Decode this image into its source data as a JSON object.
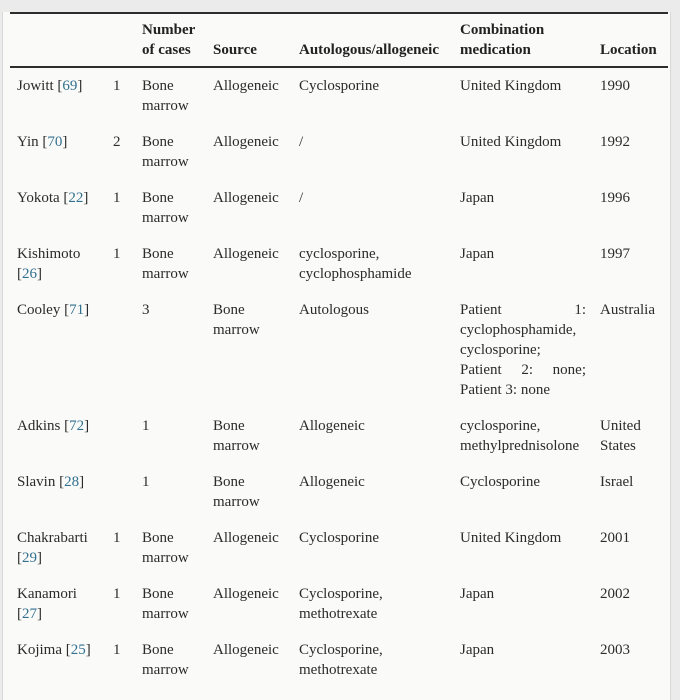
{
  "colors": {
    "page_background": "#ebebeb",
    "panel_background": "#fafaf9",
    "rule": "#2d2d2d",
    "text": "#2b2b2b",
    "citation_link": "#31708f"
  },
  "table": {
    "columns": [
      {
        "key": "author",
        "label": ""
      },
      {
        "key": "cases-left",
        "label": ""
      },
      {
        "key": "number-of-cases",
        "label": "Number of cases"
      },
      {
        "key": "source",
        "label": "Source"
      },
      {
        "key": "autologous-allogeneic",
        "label": "Autologous/allogeneic"
      },
      {
        "key": "combination-medication",
        "label": "Combination medication"
      },
      {
        "key": "location",
        "label": "Location"
      }
    ],
    "rows": [
      {
        "author": "Jowitt",
        "ref": "69",
        "cells": [
          "1",
          "Bone marrow",
          "Allogeneic",
          "Cyclosporine",
          "United Kingdom",
          "1990"
        ]
      },
      {
        "author": "Yin",
        "ref": "70",
        "cells": [
          "2",
          "Bone marrow",
          "Allogeneic",
          "/",
          "United Kingdom",
          "1992"
        ]
      },
      {
        "author": "Yokota",
        "ref": "22",
        "cells": [
          "1",
          "Bone marrow",
          "Allogeneic",
          "/",
          "Japan",
          "1996"
        ]
      },
      {
        "author": "Kishimoto",
        "ref": "26",
        "cells": [
          "1",
          "Bone marrow",
          "Allogeneic",
          "cyclosporine, cyclophosphamide",
          "Japan",
          "1997"
        ]
      },
      {
        "author": "Cooley",
        "ref": "71",
        "cells": [
          "",
          "3",
          "Bone marrow",
          "Autologous",
          "Patient 1: cyclophosphamide, cyclosporine; Patient 2: none; Patient 3: none",
          "Australia"
        ]
      },
      {
        "author": "Adkins",
        "ref": "72",
        "cells": [
          "",
          "1",
          "Bone marrow",
          "Allogeneic",
          "cyclosporine, methylprednisolone",
          "United States"
        ]
      },
      {
        "author": "Slavin",
        "ref": "28",
        "cells": [
          "",
          "1",
          "Bone marrow",
          "Allogeneic",
          "Cyclosporine",
          "Israel"
        ]
      },
      {
        "author": "Chakrabarti",
        "ref": "29",
        "cells": [
          "1",
          "Bone marrow",
          "Allogeneic",
          "Cyclosporine",
          "United Kingdom",
          "2001"
        ]
      },
      {
        "author": "Kanamori",
        "ref": "27",
        "cells": [
          "1",
          "Bone marrow",
          "Allogeneic",
          "Cyclosporine, methotrexate",
          "Japan",
          "2002"
        ]
      },
      {
        "author": "Kojima",
        "ref": "25",
        "cells": [
          "1",
          "Bone marrow",
          "Allogeneic",
          "Cyclosporine, methotrexate",
          "Japan",
          "2003"
        ]
      }
    ]
  }
}
